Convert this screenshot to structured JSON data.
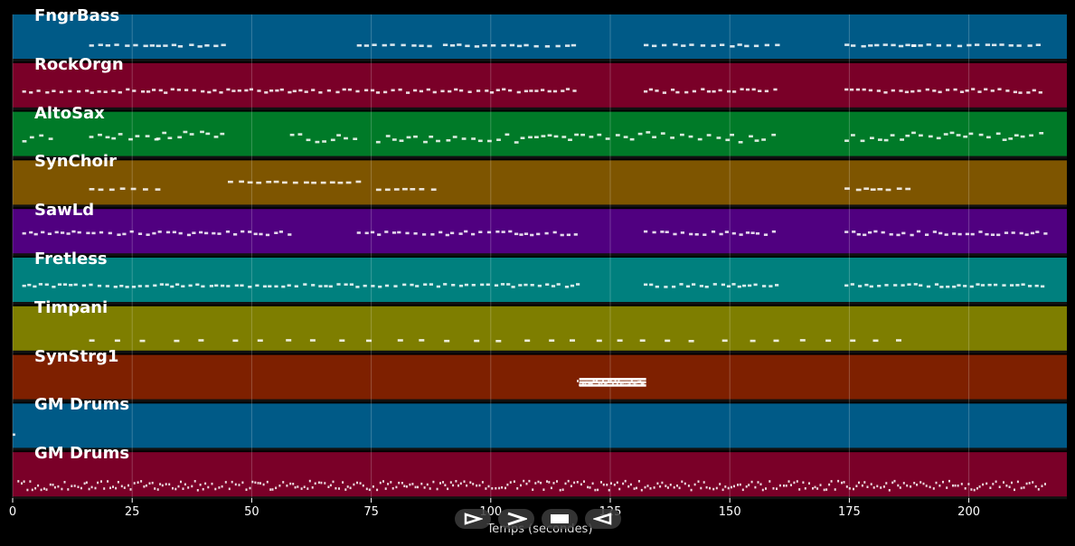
{
  "tracks": [
    {
      "name": "FngrBass",
      "color": "#005a87",
      "notes": [
        [
          16,
          30,
          0.65
        ],
        [
          30,
          44,
          0.65
        ],
        [
          72,
          88,
          0.65
        ],
        [
          90,
          118,
          0.65
        ],
        [
          132,
          160,
          0.65
        ],
        [
          174,
          188,
          0.65
        ],
        [
          188,
          216,
          0.65
        ]
      ],
      "density": 0.55,
      "jitter": 0.04
    },
    {
      "name": "RockOrgn",
      "color": "#7a0028",
      "notes": [
        [
          2,
          118,
          0.58
        ],
        [
          132,
          160,
          0.58
        ],
        [
          174,
          216,
          0.58
        ]
      ],
      "density": 0.7,
      "jitter": 0.08
    },
    {
      "name": "AltoSax",
      "color": "#007a28",
      "notes": [
        [
          2,
          8,
          0.55
        ],
        [
          16,
          30,
          0.55
        ],
        [
          30,
          44,
          0.5
        ],
        [
          58,
          72,
          0.55
        ],
        [
          76,
          124,
          0.55
        ],
        [
          124,
          150,
          0.5
        ],
        [
          150,
          160,
          0.55
        ],
        [
          174,
          188,
          0.55
        ],
        [
          188,
          216,
          0.5
        ]
      ],
      "density": 0.6,
      "jitter": 0.18
    },
    {
      "name": "SynChoir",
      "color": "#7e5500",
      "notes": [
        [
          16,
          30,
          0.6
        ],
        [
          45,
          72,
          0.45
        ],
        [
          76,
          90,
          0.6
        ],
        [
          174,
          188,
          0.6
        ]
      ],
      "density": 0.5,
      "jitter": 0.03
    },
    {
      "name": "SawLd",
      "color": "#500080",
      "notes": [
        [
          2,
          58,
          0.5
        ],
        [
          72,
          118,
          0.5
        ],
        [
          132,
          160,
          0.5
        ],
        [
          174,
          216,
          0.5
        ]
      ],
      "density": 0.7,
      "jitter": 0.08
    },
    {
      "name": "Fretless",
      "color": "#00807e",
      "notes": [
        [
          2,
          118,
          0.58
        ],
        [
          132,
          160,
          0.58
        ],
        [
          174,
          216,
          0.58
        ]
      ],
      "density": 0.7,
      "jitter": 0.06
    },
    {
      "name": "Timpani",
      "color": "#7e7e00",
      "notes": [
        [
          16,
          188,
          0.72
        ]
      ],
      "density": 0.18,
      "jitter": 0.02
    },
    {
      "name": "SynStrg1",
      "color": "#7e2000",
      "notes": [
        [
          118,
          132,
          0.58
        ]
      ],
      "density": 2.5,
      "jitter": 0.1
    },
    {
      "name": "GM Drums",
      "color": "#005a87",
      "notes": [
        [
          0,
          0.5,
          0.65
        ]
      ],
      "density": 1,
      "jitter": 0.0
    },
    {
      "name": "GM Drums",
      "color": "#7a0028",
      "notes": [
        [
          1,
          216,
          0.7
        ]
      ],
      "density": 1.6,
      "jitter": 0.2
    }
  ],
  "x_axis": {
    "title": "Temps (secondes)",
    "ticks": [
      {
        "value": 0,
        "label": "0"
      },
      {
        "value": 25,
        "label": "25"
      },
      {
        "value": 50,
        "label": "50"
      },
      {
        "value": 75,
        "label": "75"
      },
      {
        "value": 100,
        "label": "100"
      },
      {
        "value": 125,
        "label": "125"
      },
      {
        "value": 150,
        "label": "150"
      },
      {
        "value": 175,
        "label": "175"
      },
      {
        "value": 200,
        "label": "200"
      }
    ],
    "range": [
      0,
      220.5
    ]
  },
  "transport": [
    {
      "name": "play-icon"
    },
    {
      "name": "forward-icon"
    },
    {
      "name": "stop-icon"
    },
    {
      "name": "rewind-icon"
    }
  ],
  "colors": {
    "background": "#000000",
    "note": "#ffffff",
    "grid": "#ffffff"
  }
}
